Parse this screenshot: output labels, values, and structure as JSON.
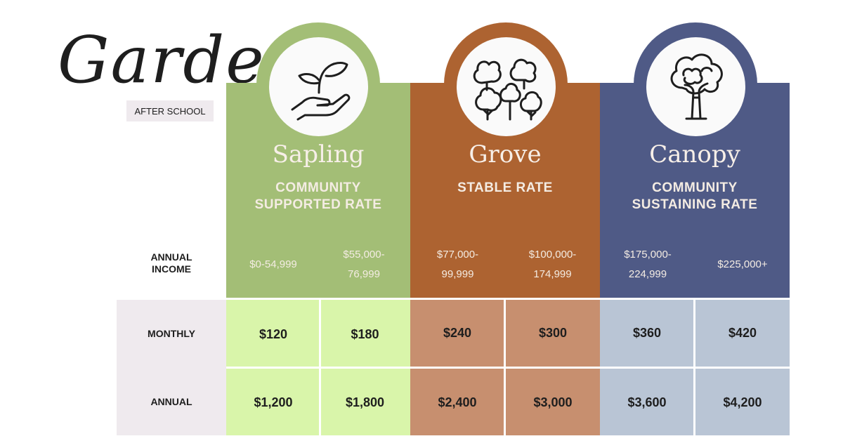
{
  "header": {
    "title": "Gardens",
    "badge": "AFTER SCHOOL"
  },
  "rows": {
    "income_label": "ANNUAL\nINCOME",
    "monthly_label": "MONTHLY",
    "annual_label": "ANNUAL"
  },
  "tiers": [
    {
      "name": "Sapling",
      "rate": "COMMUNITY\nSUPPORTED RATE",
      "icon": "seedling-in-hand-icon",
      "color": "#a3be76",
      "cell_color": "#d9f5aa",
      "brackets": [
        {
          "income": "$0-54,999",
          "monthly": "$120",
          "annual": "$1,200"
        },
        {
          "income": "$55,000-\n76,999",
          "monthly": "$180",
          "annual": "$1,800"
        }
      ]
    },
    {
      "name": "Grove",
      "rate": "STABLE RATE",
      "icon": "grove-trees-icon",
      "color": "#ad6331",
      "cell_color": "#c78f6f",
      "brackets": [
        {
          "income": "$77,000-\n99,999",
          "monthly": "$240",
          "annual": "$2,400"
        },
        {
          "income": "$100,000-\n174,999",
          "monthly": "$300",
          "annual": "$3,000"
        }
      ]
    },
    {
      "name": "Canopy",
      "rate": "COMMUNITY\nSUSTAINING RATE",
      "icon": "tree-canopy-icon",
      "color": "#4f5a86",
      "cell_color": "#b9c5d5",
      "brackets": [
        {
          "income": "$175,000-\n224,999",
          "monthly": "$360",
          "annual": "$3,600"
        },
        {
          "income": "$225,000+",
          "monthly": "$420",
          "annual": "$4,200"
        }
      ]
    }
  ]
}
